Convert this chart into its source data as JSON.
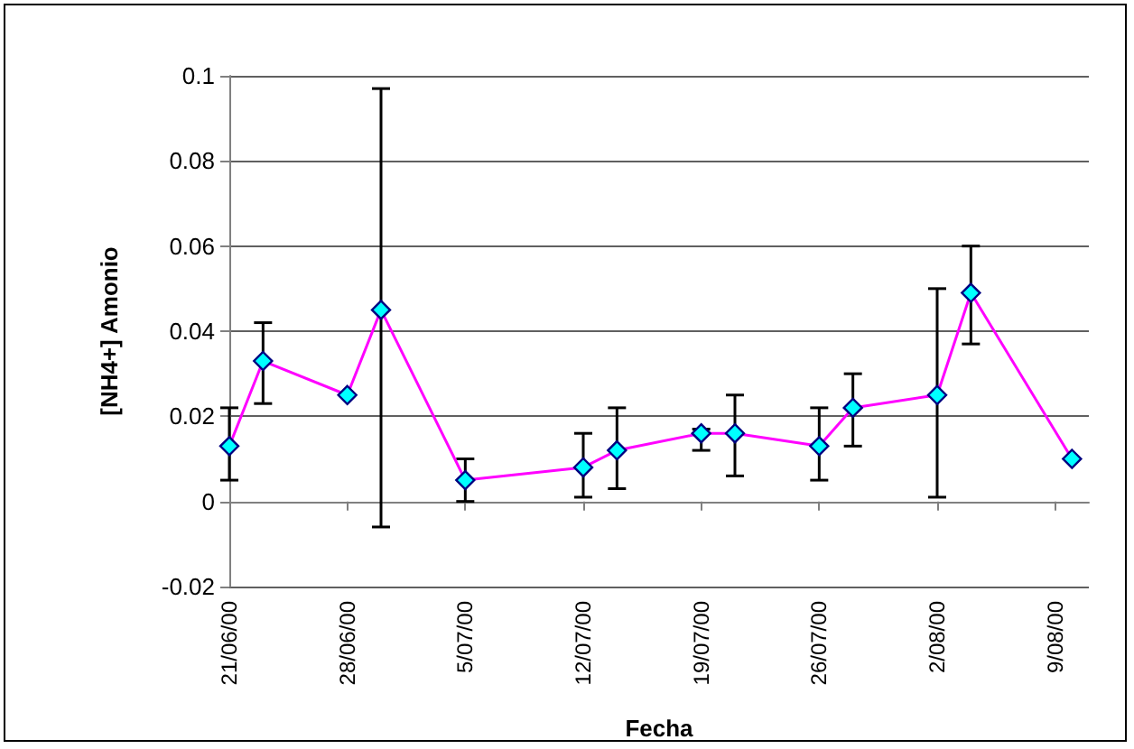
{
  "chart_data": {
    "type": "line",
    "xlabel": "Fecha",
    "ylabel": "[NH4+] Amonio",
    "x": [
      "2000-06-21",
      "2000-06-23",
      "2000-06-28",
      "2000-06-30",
      "2000-07-05",
      "2000-07-12",
      "2000-07-14",
      "2000-07-19",
      "2000-07-21",
      "2000-07-26",
      "2000-07-28",
      "2000-08-02",
      "2000-08-04",
      "2000-08-10"
    ],
    "series": [
      {
        "color": "#ff00ff",
        "values": [
          0.013,
          0.033,
          0.025,
          0.045,
          0.005,
          0.008,
          0.012,
          0.016,
          0.016,
          0.013,
          0.022,
          0.025,
          0.049,
          0.01
        ],
        "errors": [
          [
            0.005,
            0.022
          ],
          [
            0.023,
            0.042
          ],
          null,
          [
            -0.006,
            0.097
          ],
          [
            0,
            0.01
          ],
          [
            0.001,
            0.016
          ],
          [
            0.003,
            0.022
          ],
          [
            0.012,
            0.017
          ],
          [
            0.006,
            0.025
          ],
          [
            0.005,
            0.022
          ],
          [
            0.013,
            0.03
          ],
          [
            0.001,
            0.05
          ],
          [
            0.037,
            0.06
          ],
          null
        ]
      }
    ],
    "xlim": [
      "2000-06-21",
      "2000-08-11"
    ],
    "xticks": [
      {
        "value": "2000-06-21",
        "label": "21/06/00"
      },
      {
        "value": "2000-06-28",
        "label": "28/06/00"
      },
      {
        "value": "2000-07-05",
        "label": "5/07/00"
      },
      {
        "value": "2000-07-12",
        "label": "12/07/00"
      },
      {
        "value": "2000-07-19",
        "label": "19/07/00"
      },
      {
        "value": "2000-07-26",
        "label": "26/07/00"
      },
      {
        "value": "2000-08-02",
        "label": "2/08/00"
      },
      {
        "value": "2000-08-09",
        "label": "9/08/00"
      }
    ],
    "ylim": [
      -0.02,
      0.1
    ],
    "yticks": [
      -0.02,
      0,
      0.02,
      0.04,
      0.06,
      0.08,
      0.1
    ],
    "grid": "y",
    "marker": "diamond",
    "line_style": "solid"
  }
}
